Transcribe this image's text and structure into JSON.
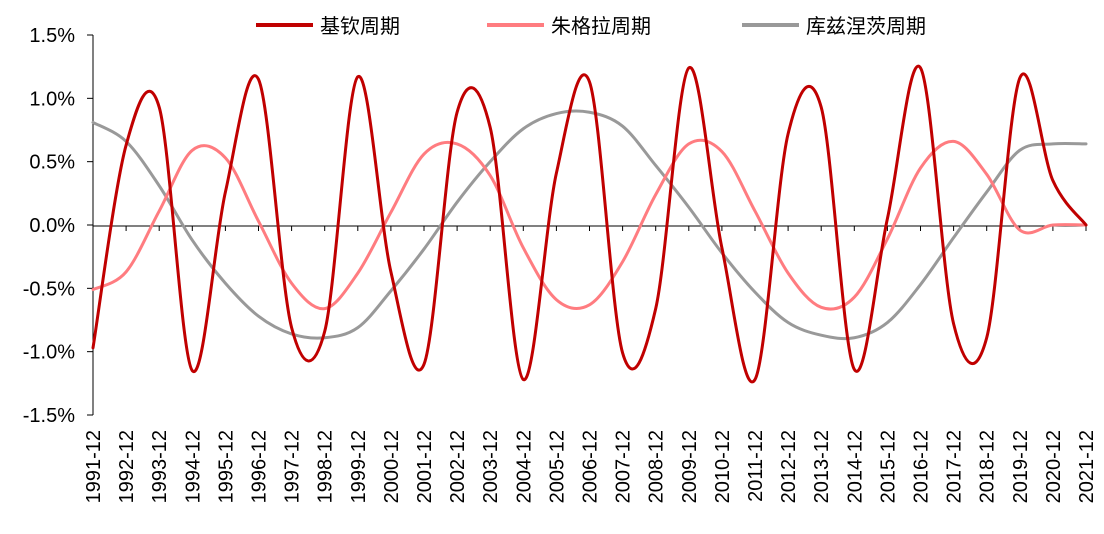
{
  "chart_data": {
    "type": "line",
    "title": "",
    "xlabel": "",
    "ylabel": "",
    "ylim": [
      -0.015,
      0.015
    ],
    "yticks": [
      "1.5%",
      "1.0%",
      "0.5%",
      "0.0%",
      "-0.5%",
      "-1.0%",
      "-1.5%"
    ],
    "ytick_values": [
      0.015,
      0.01,
      0.005,
      0,
      -0.005,
      -0.01,
      -0.015
    ],
    "categories": [
      "1991-12",
      "1992-12",
      "1993-12",
      "1994-12",
      "1995-12",
      "1996-12",
      "1997-12",
      "1998-12",
      "1999-12",
      "2000-12",
      "2001-12",
      "2002-12",
      "2003-12",
      "2004-12",
      "2005-12",
      "2006-12",
      "2007-12",
      "2008-12",
      "2009-12",
      "2010-12",
      "2011-12",
      "2012-12",
      "2013-12",
      "2014-12",
      "2015-12",
      "2016-12",
      "2017-12",
      "2018-12",
      "2019-12",
      "2020-12",
      "2021-12"
    ],
    "legend_position": "top",
    "grid": false,
    "series": [
      {
        "name": "基钦周期",
        "color": "#C00000",
        "values": [
          -0.0097,
          0.0063,
          0.0093,
          -0.0115,
          0.0026,
          0.0115,
          -0.0081,
          -0.0084,
          0.0117,
          -0.0037,
          -0.011,
          0.0089,
          0.0077,
          -0.0122,
          0.0041,
          0.0113,
          -0.0101,
          -0.0066,
          0.0124,
          -0.0018,
          -0.0122,
          0.0072,
          0.0093,
          -0.0114,
          0.0005,
          0.0124,
          -0.0078,
          -0.0089,
          0.0116,
          0.0035,
          0.0
        ]
      },
      {
        "name": "朱格拉周期",
        "color": "#FF7C80",
        "values": [
          -0.0051,
          -0.0037,
          0.0011,
          0.0059,
          0.0053,
          0.0003,
          -0.0046,
          -0.0066,
          -0.0038,
          0.001,
          0.0056,
          0.0064,
          0.0039,
          -0.0018,
          -0.0059,
          -0.0063,
          -0.0029,
          0.0024,
          0.0064,
          0.0058,
          0.0011,
          -0.0038,
          -0.0065,
          -0.0057,
          -0.0011,
          0.0045,
          0.0066,
          0.004,
          -0.0004,
          0.0,
          0.0
        ]
      },
      {
        "name": "库兹涅茨周期",
        "color": "#999999",
        "values": [
          0.0081,
          0.0066,
          0.0031,
          -0.0012,
          -0.0046,
          -0.0072,
          -0.0086,
          -0.0089,
          -0.0081,
          -0.0052,
          -0.0019,
          0.0018,
          0.005,
          0.0076,
          0.0088,
          0.0089,
          0.0078,
          0.0047,
          0.0014,
          -0.0022,
          -0.0053,
          -0.0077,
          -0.0087,
          -0.0089,
          -0.0077,
          -0.0047,
          -0.001,
          0.0026,
          0.0059,
          0.0064,
          0.0064
        ]
      }
    ]
  }
}
